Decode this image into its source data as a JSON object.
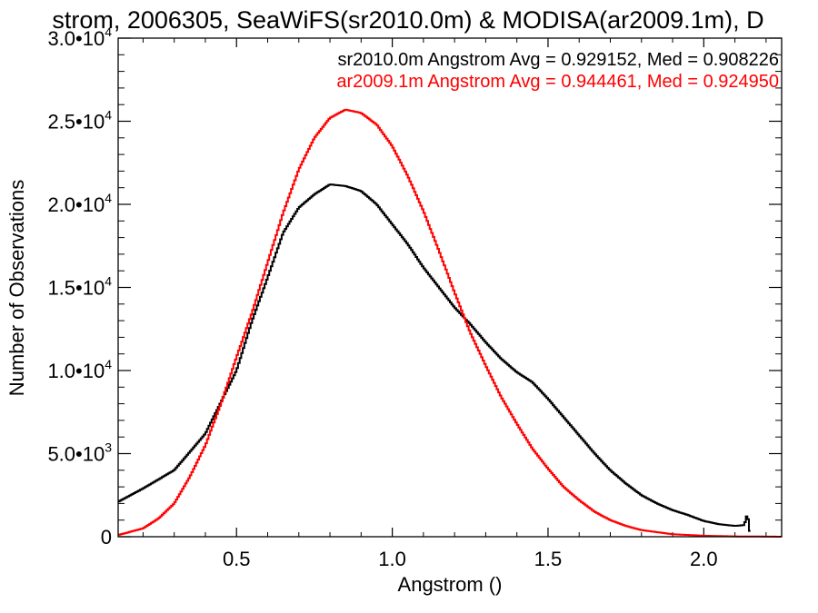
{
  "chart_data": {
    "type": "line",
    "title": "strom, 2006305, SeaWiFS(sr2010.0m) & MODISA(ar2009.1m), D",
    "xlabel": "Angstrom ()",
    "ylabel": "Number of Observations",
    "xlim": [
      0.12,
      2.25
    ],
    "ylim": [
      0,
      30000
    ],
    "grid": false,
    "legend_position": "top-right",
    "xticks": [
      {
        "value": 0.5,
        "label": "0.5"
      },
      {
        "value": 1.0,
        "label": "1.0"
      },
      {
        "value": 1.5,
        "label": "1.5"
      },
      {
        "value": 2.0,
        "label": "2.0"
      }
    ],
    "yticks": [
      {
        "value": 0,
        "mantissa": "0",
        "exp": ""
      },
      {
        "value": 5000,
        "mantissa": "5.0•10",
        "exp": "3"
      },
      {
        "value": 10000,
        "mantissa": "1.0•10",
        "exp": "4"
      },
      {
        "value": 15000,
        "mantissa": "1.5•10",
        "exp": "4"
      },
      {
        "value": 20000,
        "mantissa": "2.0•10",
        "exp": "4"
      },
      {
        "value": 25000,
        "mantissa": "2.5•10",
        "exp": "4"
      },
      {
        "value": 30000,
        "mantissa": "3.0•10",
        "exp": "4"
      }
    ],
    "series": [
      {
        "name": "sr2010.0m Angstrom Avg = 0.929152, Med = 0.908226",
        "color": "#000000",
        "x": [
          0.12,
          0.2,
          0.3,
          0.4,
          0.5,
          0.55,
          0.6,
          0.65,
          0.7,
          0.75,
          0.8,
          0.85,
          0.9,
          0.95,
          1.0,
          1.05,
          1.1,
          1.15,
          1.2,
          1.25,
          1.3,
          1.35,
          1.4,
          1.45,
          1.5,
          1.55,
          1.6,
          1.65,
          1.7,
          1.75,
          1.8,
          1.85,
          1.9,
          1.95,
          2.0,
          2.05,
          2.1,
          2.13,
          2.14,
          2.15
        ],
        "y": [
          2100,
          2900,
          4000,
          6200,
          10000,
          13000,
          15600,
          18300,
          19800,
          20600,
          21200,
          21100,
          20800,
          20000,
          18800,
          17600,
          16200,
          15000,
          13800,
          12800,
          11700,
          10700,
          9900,
          9300,
          8300,
          7200,
          6100,
          5000,
          4000,
          3200,
          2500,
          2000,
          1600,
          1300,
          950,
          750,
          650,
          700,
          1400,
          0
        ]
      },
      {
        "name": "ar2009.1m Angstrom Avg = 0.944461, Med = 0.924950",
        "color": "#ff0000",
        "x": [
          0.12,
          0.2,
          0.25,
          0.3,
          0.35,
          0.4,
          0.45,
          0.5,
          0.55,
          0.6,
          0.65,
          0.7,
          0.75,
          0.8,
          0.85,
          0.9,
          0.95,
          1.0,
          1.05,
          1.1,
          1.15,
          1.2,
          1.25,
          1.3,
          1.35,
          1.4,
          1.45,
          1.5,
          1.55,
          1.6,
          1.65,
          1.7,
          1.75,
          1.8,
          1.9,
          2.0,
          2.1,
          2.25
        ],
        "y": [
          100,
          500,
          1100,
          2000,
          3600,
          5500,
          8000,
          10800,
          13500,
          16500,
          19500,
          22100,
          24000,
          25200,
          25700,
          25500,
          24800,
          23500,
          21700,
          19600,
          17200,
          14700,
          12300,
          10300,
          8400,
          6800,
          5300,
          4100,
          3000,
          2200,
          1500,
          1000,
          650,
          400,
          150,
          60,
          20,
          0
        ]
      }
    ]
  }
}
